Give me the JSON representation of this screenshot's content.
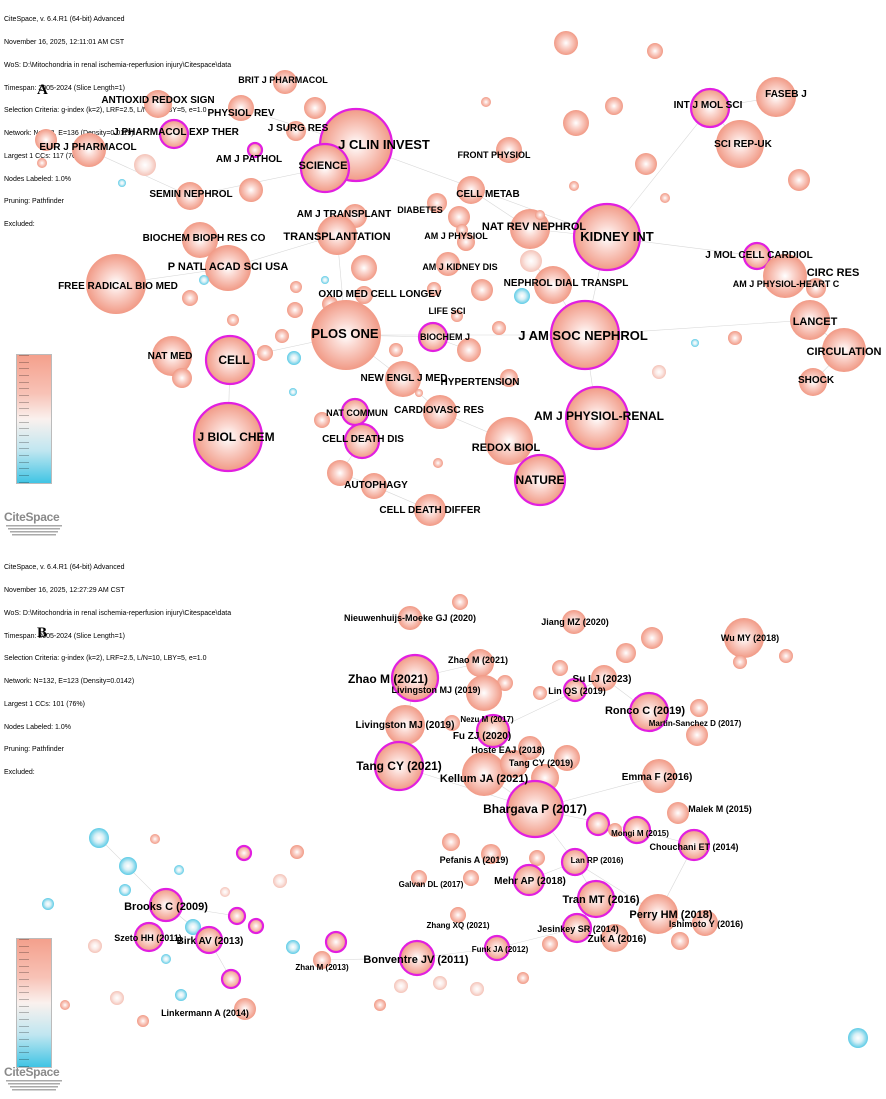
{
  "panelA": {
    "letter": "A",
    "header": [
      "CiteSpace, v. 6.4.R1 (64-bit) Advanced",
      "November 16, 2025, 12:11:01 AM CST",
      "WoS: D:\\Mitochondria in renal ischemia-reperfusion injury\\Citespace\\data",
      "Timespan: 2005-2024 (Slice Length=1)",
      "Selection Criteria: g-index (k=2), LRF=2.5, L/N=10, LBY=5, e=1.0",
      "Network: N=152, E=136 (Density=0.0119)",
      "Largest 1 CCs: 117 (76%)",
      "Nodes Labeled: 1.0%",
      "Pruning: Pathfinder",
      "Excluded:"
    ],
    "logo": "CiteSpace",
    "labels": [
      "BRIT J PHARMACOL",
      "ANTIOXID REDOX SIGN",
      "PHYSIOL REV",
      "J PHARMACOL EXP THER",
      "J SURG RES",
      "EUR J PHARMACOL",
      "J CLIN INVEST",
      "SCIENCE",
      "AM J PATHOL",
      "SEMIN NEPHROL",
      "FRONT PHYSIOL",
      "CELL METAB",
      "INT J MOL SCI",
      "FASEB J",
      "SCI REP-UK",
      "AM J TRANSPLANT",
      "DIABETES",
      "BIOCHEM BIOPH RES CO",
      "TRANSPLANTATION",
      "AM J PHYSIOL",
      "NAT REV NEPHROL",
      "KIDNEY INT",
      "P NATL ACAD SCI USA",
      "AM J KIDNEY DIS",
      "FREE RADICAL BIO MED",
      "NEPHROL DIAL TRANSPL",
      "J MOL CELL CARDIOL",
      "CIRC RES",
      "AM J PHYSIOL-HEART C",
      "OXID MED CELL LONGEV",
      "LIFE SCI",
      "PLOS ONE",
      "BIOCHEM J",
      "J AM SOC NEPHROL",
      "LANCET",
      "CIRCULATION",
      "NAT MED",
      "CELL",
      "NEW ENGL J MED",
      "HYPERTENSION",
      "SHOCK",
      "NAT COMMUN",
      "CARDIOVASC RES",
      "AM J PHYSIOL-RENAL",
      "J BIOL CHEM",
      "CELL DEATH DIS",
      "REDOX BIOL",
      "NATURE",
      "AUTOPHAGY",
      "CELL DEATH DIFFER"
    ]
  },
  "panelB": {
    "letter": "B",
    "header": [
      "CiteSpace, v. 6.4.R1 (64-bit) Advanced",
      "November 16, 2025, 12:27:29 AM CST",
      "WoS: D:\\Mitochondria in renal ischemia-reperfusion injury\\Citespace\\data",
      "Timespan: 2005-2024 (Slice Length=1)",
      "Selection Criteria: g-index (k=2), LRF=2.5, L/N=10, LBY=5, e=1.0",
      "Network: N=132, E=123 (Density=0.0142)",
      "Largest 1 CCs: 101 (76%)",
      "Nodes Labeled: 1.0%",
      "Pruning: Pathfinder",
      "Excluded:"
    ],
    "logo": "CiteSpace",
    "labels": [
      "Nieuwenhuijs-Moeke GJ (2020)",
      "Jiang MZ (2020)",
      "Wu MY (2018)",
      "Zhao M (2021)",
      "Zhao M (2021)",
      "Su LJ (2023)",
      "Livingston MJ (2019)",
      "Lin QS (2019)",
      "Nezu M (2017)",
      "Ronco C (2019)",
      "Martin-Sanchez D (2017)",
      "Livingston MJ (2019)",
      "Fu ZJ (2020)",
      "Hoste EAJ (2018)",
      "Tang CY (2019)",
      "Tang CY (2021)",
      "Kellum JA (2021)",
      "Emma F (2016)",
      "Bhargava P (2017)",
      "Malek M (2015)",
      "Mongi M (2015)",
      "Chouchani ET (2014)",
      "Lan RP (2016)",
      "Pefanis A (2019)",
      "Galvan DL (2017)",
      "Mehr AP (2018)",
      "Tran MT (2016)",
      "Perry HM (2018)",
      "Brooks C (2009)",
      "Zhang XQ (2021)",
      "Ishimoto Y (2016)",
      "Jesinkey SR (2014)",
      "Szeto HH (2011)",
      "Birk AV (2013)",
      "Zuk A (2016)",
      "Funk JA (2012)",
      "Bonventre JV (2011)",
      "Zhan M (2013)",
      "Linkermann A (2014)"
    ]
  }
}
